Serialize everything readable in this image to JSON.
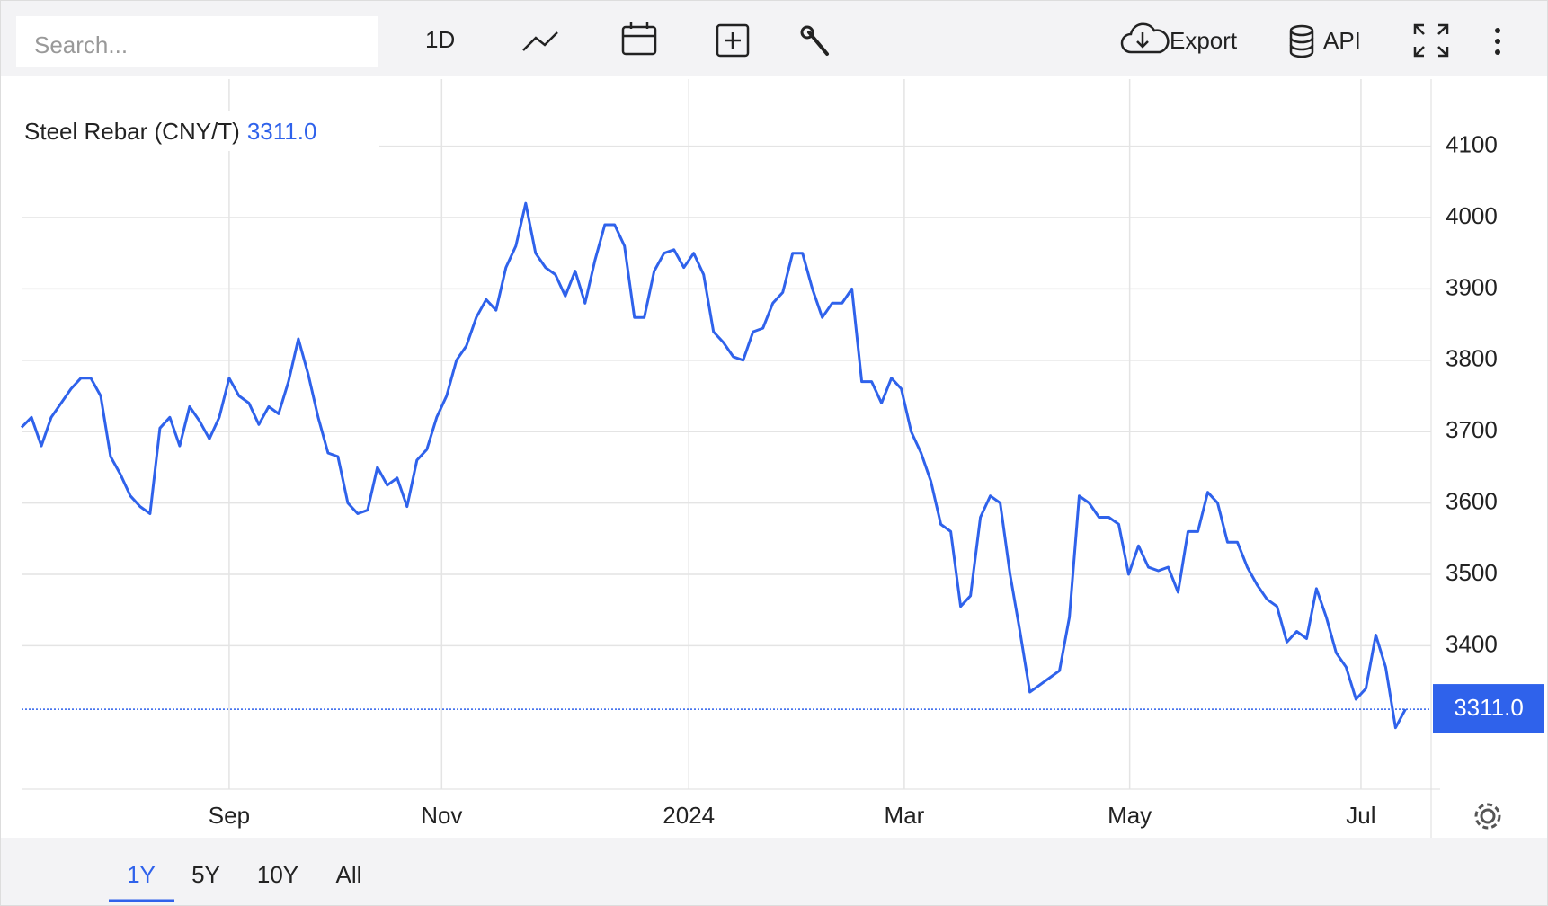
{
  "toolbar": {
    "search_placeholder": "Search...",
    "interval": "1D",
    "export": "Export",
    "api": "API"
  },
  "range_buttons": [
    "1Y",
    "5Y",
    "10Y",
    "All"
  ],
  "chart_data": {
    "type": "line",
    "title": "Steel Rebar (CNY/T)",
    "color": "#2f62eb",
    "last_value": {
      "value": 3311,
      "label": "3311.0"
    },
    "values": [
      3706,
      3720,
      3680,
      3720,
      3740,
      3760,
      3775,
      3775,
      3750,
      3665,
      3640,
      3610,
      3595,
      3585,
      3705,
      3720,
      3680,
      3735,
      3715,
      3690,
      3720,
      3775,
      3750,
      3740,
      3710,
      3735,
      3725,
      3770,
      3830,
      3780,
      3720,
      3670,
      3665,
      3600,
      3585,
      3590,
      3650,
      3625,
      3635,
      3595,
      3660,
      3675,
      3720,
      3750,
      3800,
      3820,
      3860,
      3885,
      3870,
      3930,
      3960,
      4020,
      3950,
      3930,
      3920,
      3890,
      3925,
      3880,
      3940,
      3990,
      3990,
      3960,
      3860,
      3860,
      3925,
      3950,
      3955,
      3930,
      3950,
      3920,
      3840,
      3825,
      3805,
      3800,
      3840,
      3845,
      3880,
      3895,
      3950,
      3950,
      3900,
      3860,
      3880,
      3880,
      3900,
      3770,
      3770,
      3740,
      3775,
      3760,
      3700,
      3670,
      3630,
      3570,
      3560,
      3455,
      3470,
      3580,
      3610,
      3600,
      3500,
      3420,
      3335,
      3345,
      3355,
      3365,
      3440,
      3610,
      3600,
      3580,
      3580,
      3570,
      3500,
      3540,
      3510,
      3505,
      3510,
      3475,
      3560,
      3560,
      3615,
      3600,
      3545,
      3545,
      3510,
      3485,
      3465,
      3455,
      3405,
      3420,
      3410,
      3480,
      3440,
      3390,
      3370,
      3325,
      3340,
      3415,
      3370,
      3285,
      3311
    ],
    "xlim": [
      0,
      142.6
    ],
    "xticks": [
      {
        "value": 21,
        "label": "Sep"
      },
      {
        "value": 42.5,
        "label": "Nov"
      },
      {
        "value": 67.5,
        "label": "2024"
      },
      {
        "value": 89.3,
        "label": "Mar"
      },
      {
        "value": 112.1,
        "label": "May"
      },
      {
        "value": 135.5,
        "label": "Jul"
      }
    ],
    "ylim": [
      3199,
      4194
    ],
    "yticks": [
      3400,
      3500,
      3600,
      3700,
      3800,
      3900,
      4000,
      4100
    ],
    "grid": true
  }
}
